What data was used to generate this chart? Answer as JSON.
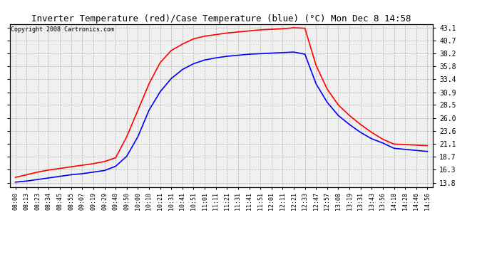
{
  "title": "Inverter Temperature (red)/Case Temperature (blue) (°C) Mon Dec 8 14:58",
  "copyright": "Copyright 2008 Cartronics.com",
  "background_color": "#ffffff",
  "plot_bg_color": "#f0f0f0",
  "grid_color": "#aaaaaa",
  "yticks": [
    13.8,
    16.3,
    18.7,
    21.1,
    23.6,
    26.0,
    28.5,
    30.9,
    33.4,
    35.8,
    38.2,
    40.7,
    43.1
  ],
  "ylim": [
    13.0,
    43.8
  ],
  "xtick_labels": [
    "08:00",
    "08:13",
    "08:23",
    "08:34",
    "08:45",
    "08:55",
    "09:07",
    "09:19",
    "09:29",
    "09:40",
    "09:50",
    "10:00",
    "10:10",
    "10:21",
    "10:31",
    "10:41",
    "10:51",
    "11:01",
    "11:11",
    "11:21",
    "11:31",
    "11:41",
    "11:51",
    "12:01",
    "12:11",
    "12:21",
    "12:33",
    "12:47",
    "12:57",
    "13:08",
    "13:19",
    "13:31",
    "13:43",
    "13:56",
    "14:18",
    "14:28",
    "14:46",
    "14:56"
  ],
  "red_data": [
    14.8,
    15.3,
    15.8,
    16.2,
    16.5,
    16.8,
    17.1,
    17.4,
    17.8,
    18.5,
    22.5,
    27.5,
    32.5,
    36.5,
    38.8,
    40.0,
    41.0,
    41.5,
    41.8,
    42.1,
    42.3,
    42.5,
    42.7,
    42.8,
    42.9,
    43.1,
    43.0,
    36.0,
    31.5,
    28.5,
    26.5,
    24.8,
    23.3,
    22.0,
    21.1,
    21.0,
    20.9,
    20.8
  ],
  "blue_data": [
    13.9,
    14.1,
    14.4,
    14.7,
    15.0,
    15.3,
    15.5,
    15.8,
    16.1,
    16.9,
    18.8,
    22.5,
    27.5,
    31.0,
    33.5,
    35.2,
    36.3,
    37.0,
    37.4,
    37.7,
    37.9,
    38.1,
    38.2,
    38.3,
    38.4,
    38.5,
    38.1,
    32.5,
    29.0,
    26.5,
    24.8,
    23.3,
    22.1,
    21.3,
    20.3,
    20.1,
    19.9,
    19.7
  ],
  "red_color": "#ff0000",
  "blue_color": "#0000ff",
  "linewidth": 1.2,
  "title_fontsize": 9,
  "tick_fontsize": 7,
  "xtick_fontsize": 6,
  "copyright_fontsize": 6
}
